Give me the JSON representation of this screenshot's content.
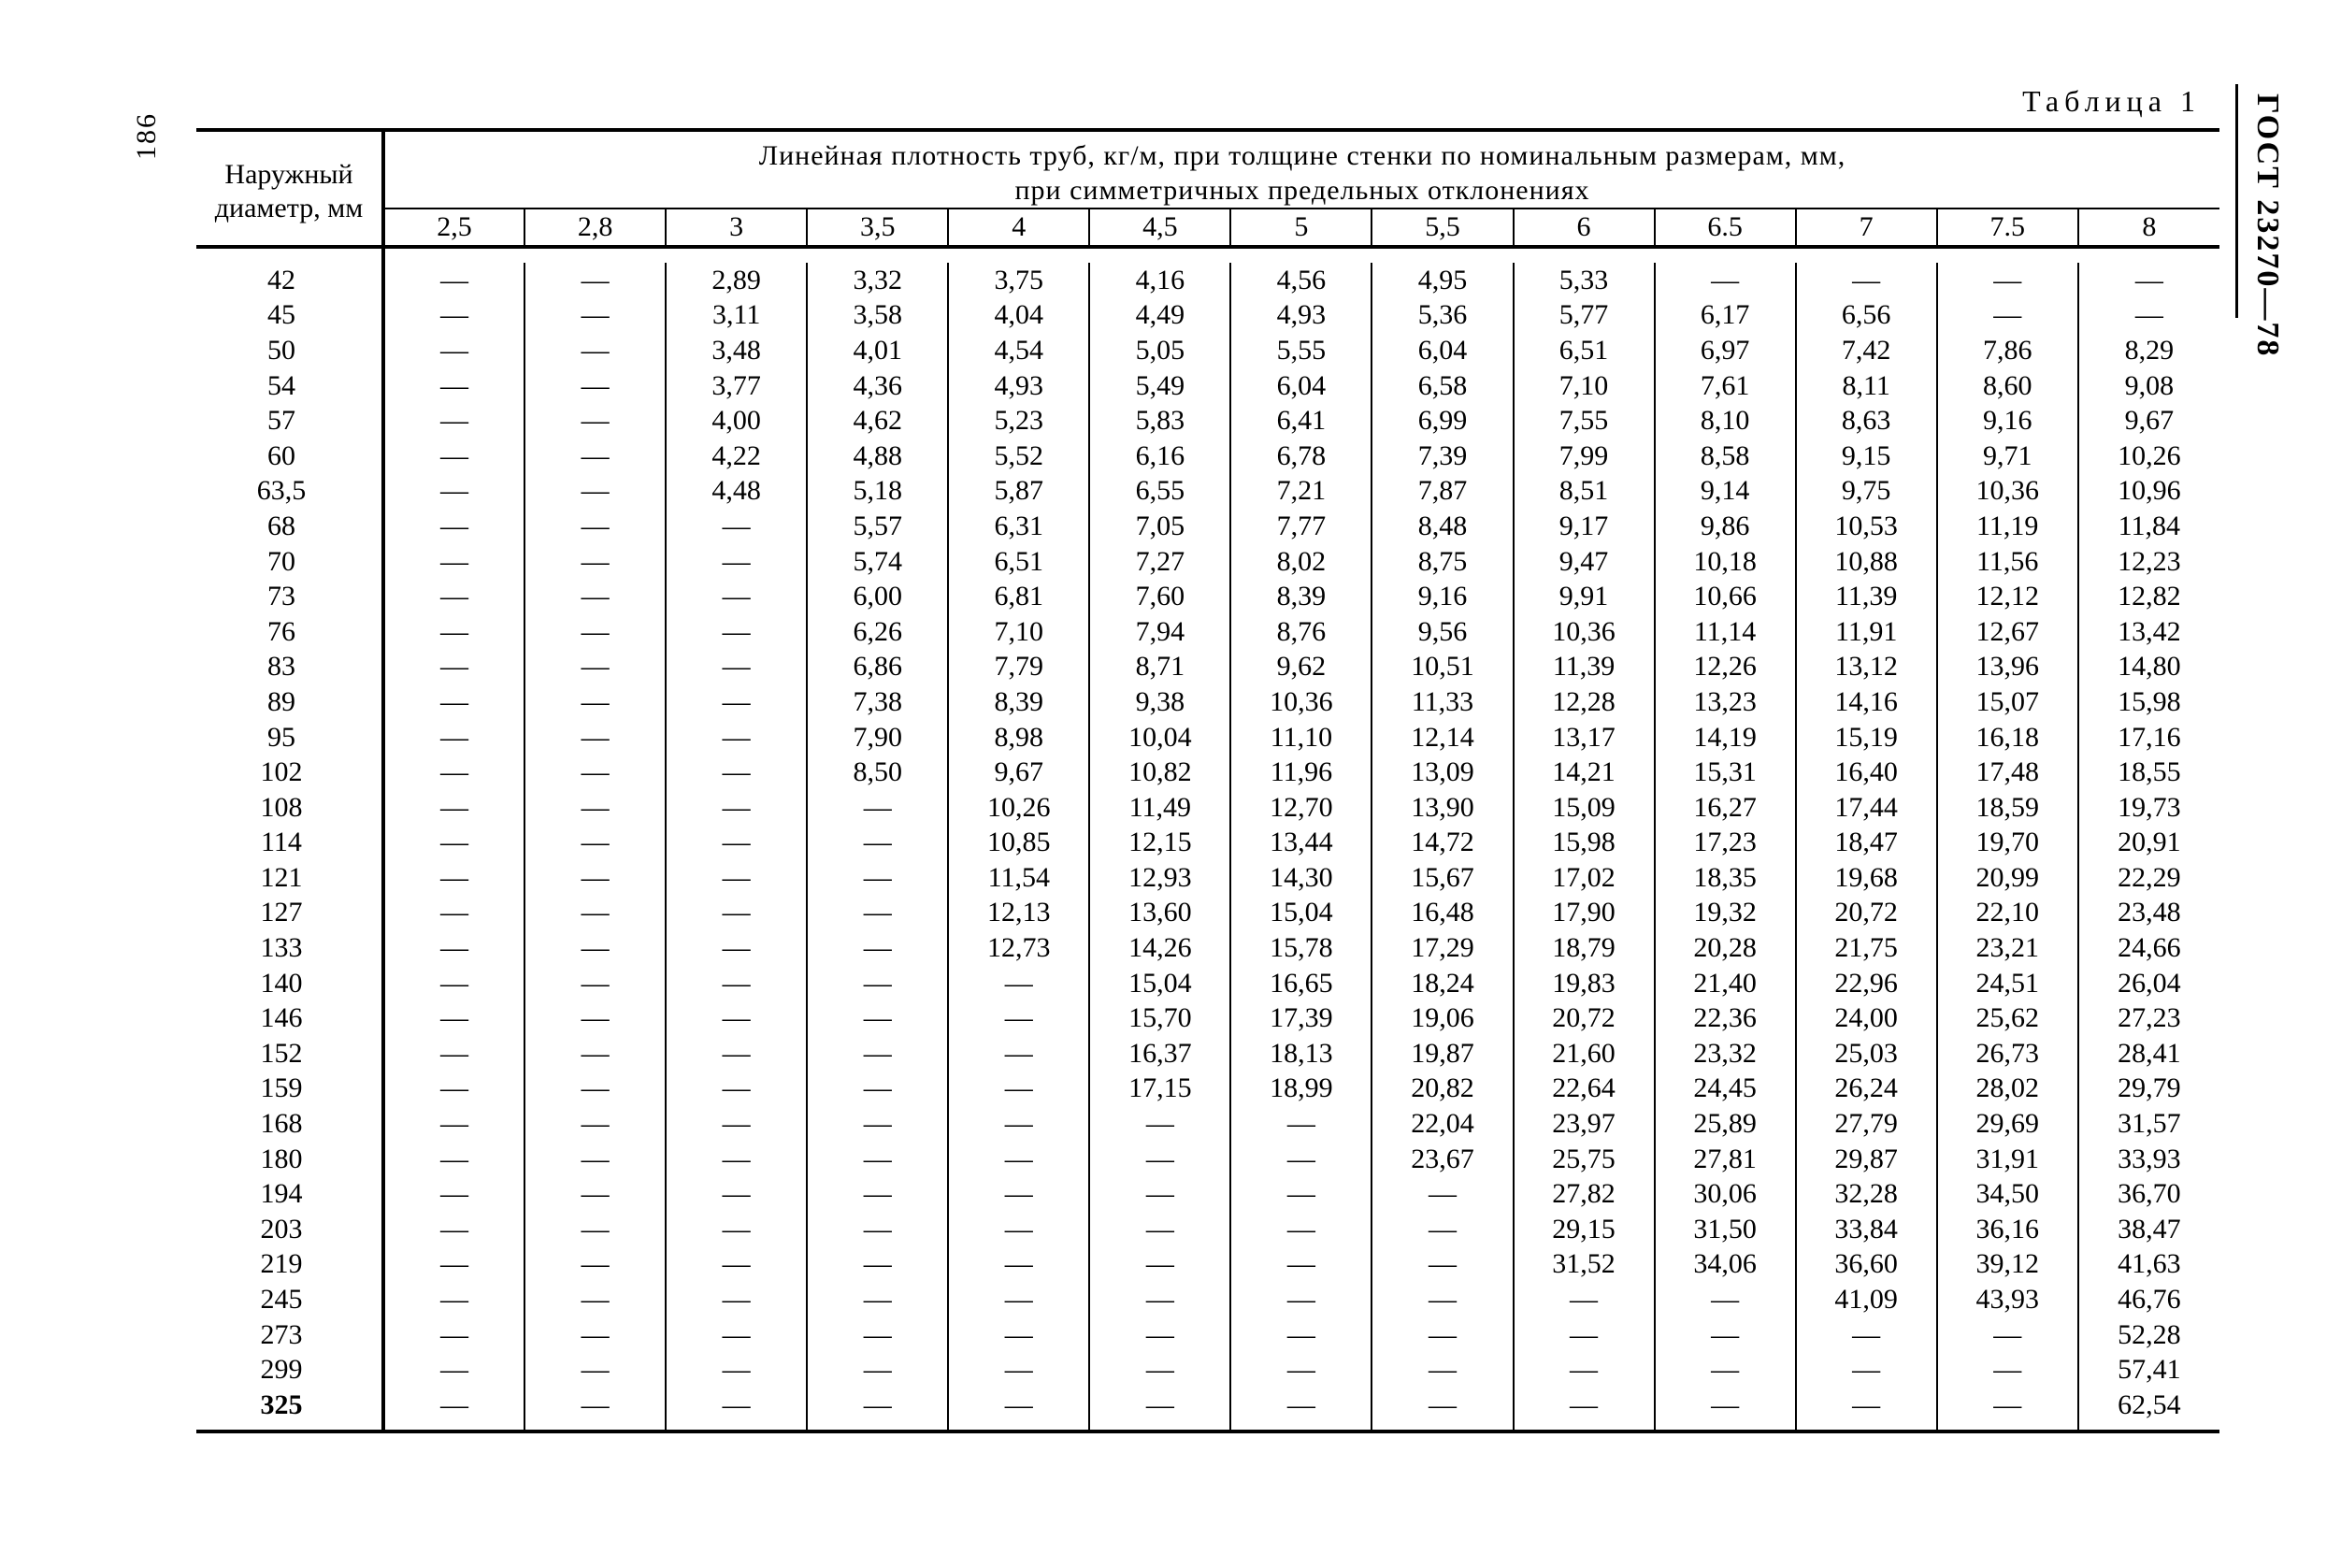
{
  "page_number": "186",
  "standard_code": "ГОСТ 23270—78",
  "table_caption": "Таблица 1",
  "row_header": {
    "line1": "Наружный",
    "line2": "диаметр,   мм"
  },
  "spanner": {
    "line1": "Линейная   плотность   труб, кг/м,   при   толщине   стенки   по   номинальным   размерам,  мм,",
    "line2": "при   симметричных   предельных   отклонениях"
  },
  "dash": "—",
  "columns": [
    "2,5",
    "2,8",
    "3",
    "3,5",
    "4",
    "4,5",
    "5",
    "5,5",
    "6",
    "6.5",
    "7",
    "7.5",
    "8"
  ],
  "diameters": [
    "42",
    "45",
    "50",
    "54",
    "57",
    "60",
    "63,5",
    "68",
    "70",
    "73",
    "76",
    "83",
    "89",
    "95",
    "102",
    "108",
    "114",
    "121",
    "127",
    "133",
    "140",
    "146",
    "152",
    "159",
    "168",
    "180",
    "194",
    "203",
    "219",
    "245",
    "273",
    "299",
    "325"
  ],
  "values": [
    [
      null,
      null,
      "2,89",
      "3,32",
      "3,75",
      "4,16",
      "4,56",
      "4,95",
      "5,33",
      null,
      null,
      null,
      null
    ],
    [
      null,
      null,
      "3,11",
      "3,58",
      "4,04",
      "4,49",
      "4,93",
      "5,36",
      "5,77",
      "6,17",
      "6,56",
      null,
      null
    ],
    [
      null,
      null,
      "3,48",
      "4,01",
      "4,54",
      "5,05",
      "5,55",
      "6,04",
      "6,51",
      "6,97",
      "7,42",
      "7,86",
      "8,29"
    ],
    [
      null,
      null,
      "3,77",
      "4,36",
      "4,93",
      "5,49",
      "6,04",
      "6,58",
      "7,10",
      "7,61",
      "8,11",
      "8,60",
      "9,08"
    ],
    [
      null,
      null,
      "4,00",
      "4,62",
      "5,23",
      "5,83",
      "6,41",
      "6,99",
      "7,55",
      "8,10",
      "8,63",
      "9,16",
      "9,67"
    ],
    [
      null,
      null,
      "4,22",
      "4,88",
      "5,52",
      "6,16",
      "6,78",
      "7,39",
      "7,99",
      "8,58",
      "9,15",
      "9,71",
      "10,26"
    ],
    [
      null,
      null,
      "4,48",
      "5,18",
      "5,87",
      "6,55",
      "7,21",
      "7,87",
      "8,51",
      "9,14",
      "9,75",
      "10,36",
      "10,96"
    ],
    [
      null,
      null,
      null,
      "5,57",
      "6,31",
      "7,05",
      "7,77",
      "8,48",
      "9,17",
      "9,86",
      "10,53",
      "11,19",
      "11,84"
    ],
    [
      null,
      null,
      null,
      "5,74",
      "6,51",
      "7,27",
      "8,02",
      "8,75",
      "9,47",
      "10,18",
      "10,88",
      "11,56",
      "12,23"
    ],
    [
      null,
      null,
      null,
      "6,00",
      "6,81",
      "7,60",
      "8,39",
      "9,16",
      "9,91",
      "10,66",
      "11,39",
      "12,12",
      "12,82"
    ],
    [
      null,
      null,
      null,
      "6,26",
      "7,10",
      "7,94",
      "8,76",
      "9,56",
      "10,36",
      "11,14",
      "11,91",
      "12,67",
      "13,42"
    ],
    [
      null,
      null,
      null,
      "6,86",
      "7,79",
      "8,71",
      "9,62",
      "10,51",
      "11,39",
      "12,26",
      "13,12",
      "13,96",
      "14,80"
    ],
    [
      null,
      null,
      null,
      "7,38",
      "8,39",
      "9,38",
      "10,36",
      "11,33",
      "12,28",
      "13,23",
      "14,16",
      "15,07",
      "15,98"
    ],
    [
      null,
      null,
      null,
      "7,90",
      "8,98",
      "10,04",
      "11,10",
      "12,14",
      "13,17",
      "14,19",
      "15,19",
      "16,18",
      "17,16"
    ],
    [
      null,
      null,
      null,
      "8,50",
      "9,67",
      "10,82",
      "11,96",
      "13,09",
      "14,21",
      "15,31",
      "16,40",
      "17,48",
      "18,55"
    ],
    [
      null,
      null,
      null,
      null,
      "10,26",
      "11,49",
      "12,70",
      "13,90",
      "15,09",
      "16,27",
      "17,44",
      "18,59",
      "19,73"
    ],
    [
      null,
      null,
      null,
      null,
      "10,85",
      "12,15",
      "13,44",
      "14,72",
      "15,98",
      "17,23",
      "18,47",
      "19,70",
      "20,91"
    ],
    [
      null,
      null,
      null,
      null,
      "11,54",
      "12,93",
      "14,30",
      "15,67",
      "17,02",
      "18,35",
      "19,68",
      "20,99",
      "22,29"
    ],
    [
      null,
      null,
      null,
      null,
      "12,13",
      "13,60",
      "15,04",
      "16,48",
      "17,90",
      "19,32",
      "20,72",
      "22,10",
      "23,48"
    ],
    [
      null,
      null,
      null,
      null,
      "12,73",
      "14,26",
      "15,78",
      "17,29",
      "18,79",
      "20,28",
      "21,75",
      "23,21",
      "24,66"
    ],
    [
      null,
      null,
      null,
      null,
      null,
      "15,04",
      "16,65",
      "18,24",
      "19,83",
      "21,40",
      "22,96",
      "24,51",
      "26,04"
    ],
    [
      null,
      null,
      null,
      null,
      null,
      "15,70",
      "17,39",
      "19,06",
      "20,72",
      "22,36",
      "24,00",
      "25,62",
      "27,23"
    ],
    [
      null,
      null,
      null,
      null,
      null,
      "16,37",
      "18,13",
      "19,87",
      "21,60",
      "23,32",
      "25,03",
      "26,73",
      "28,41"
    ],
    [
      null,
      null,
      null,
      null,
      null,
      "17,15",
      "18,99",
      "20,82",
      "22,64",
      "24,45",
      "26,24",
      "28,02",
      "29,79"
    ],
    [
      null,
      null,
      null,
      null,
      null,
      null,
      null,
      "22,04",
      "23,97",
      "25,89",
      "27,79",
      "29,69",
      "31,57"
    ],
    [
      null,
      null,
      null,
      null,
      null,
      null,
      null,
      "23,67",
      "25,75",
      "27,81",
      "29,87",
      "31,91",
      "33,93"
    ],
    [
      null,
      null,
      null,
      null,
      null,
      null,
      null,
      null,
      "27,82",
      "30,06",
      "32,28",
      "34,50",
      "36,70"
    ],
    [
      null,
      null,
      null,
      null,
      null,
      null,
      null,
      null,
      "29,15",
      "31,50",
      "33,84",
      "36,16",
      "38,47"
    ],
    [
      null,
      null,
      null,
      null,
      null,
      null,
      null,
      null,
      "31,52",
      "34,06",
      "36,60",
      "39,12",
      "41,63"
    ],
    [
      null,
      null,
      null,
      null,
      null,
      null,
      null,
      null,
      null,
      null,
      "41,09",
      "43,93",
      "46,76"
    ],
    [
      null,
      null,
      null,
      null,
      null,
      null,
      null,
      null,
      null,
      null,
      null,
      null,
      "52,28"
    ],
    [
      null,
      null,
      null,
      null,
      null,
      null,
      null,
      null,
      null,
      null,
      null,
      null,
      "57,41"
    ],
    [
      null,
      null,
      null,
      null,
      null,
      null,
      null,
      null,
      null,
      null,
      null,
      null,
      "62,54"
    ]
  ]
}
